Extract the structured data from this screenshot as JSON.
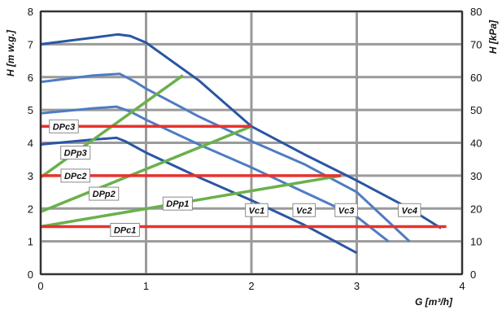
{
  "chart_data": {
    "type": "line",
    "xlabel": "G [m³/h]",
    "ylabel_left": "H [m w.g.]",
    "ylabel_right": "H [kPa]",
    "xlim": [
      0,
      4
    ],
    "ylim_left": [
      0,
      8
    ],
    "ylim_right": [
      0,
      80
    ],
    "x_ticks": [
      "0",
      "1",
      "2",
      "3",
      "4"
    ],
    "y_ticks_left": [
      "0",
      "1",
      "2",
      "3",
      "4",
      "5",
      "6",
      "7",
      "8"
    ],
    "y_ticks_right": [
      "0",
      "10",
      "20",
      "30",
      "40",
      "50",
      "60",
      "70",
      "80"
    ],
    "grid": true,
    "colors": {
      "vc": "#2a56a3",
      "vc_light": "#4f7cc2",
      "dpp": "#6ab04c",
      "dpc": "#e8322c",
      "grid": "#9a9a9a"
    },
    "series": [
      {
        "name": "Vc1",
        "group": "vc",
        "points": [
          [
            0,
            3.95
          ],
          [
            0.5,
            4.1
          ],
          [
            0.72,
            4.15
          ],
          [
            0.8,
            4.05
          ],
          [
            1.0,
            3.7
          ],
          [
            1.5,
            2.95
          ],
          [
            2.0,
            2.25
          ],
          [
            2.5,
            1.5
          ],
          [
            3.0,
            0.65
          ]
        ]
      },
      {
        "name": "Vc2",
        "group": "vc",
        "points": [
          [
            0,
            4.9
          ],
          [
            0.5,
            5.05
          ],
          [
            0.72,
            5.1
          ],
          [
            0.85,
            4.95
          ],
          [
            1.0,
            4.7
          ],
          [
            1.5,
            3.95
          ],
          [
            2.0,
            3.25
          ],
          [
            2.5,
            2.5
          ],
          [
            3.0,
            1.75
          ],
          [
            3.3,
            1.0
          ]
        ]
      },
      {
        "name": "Vc3",
        "group": "vc",
        "points": [
          [
            0,
            5.85
          ],
          [
            0.5,
            6.05
          ],
          [
            0.75,
            6.1
          ],
          [
            0.9,
            5.85
          ],
          [
            1.0,
            5.65
          ],
          [
            1.5,
            4.8
          ],
          [
            2.0,
            4.05
          ],
          [
            2.5,
            3.35
          ],
          [
            3.0,
            2.5
          ],
          [
            3.5,
            1.0
          ]
        ]
      },
      {
        "name": "Vc4",
        "group": "vc",
        "points": [
          [
            0,
            7.0
          ],
          [
            0.5,
            7.2
          ],
          [
            0.73,
            7.3
          ],
          [
            0.85,
            7.25
          ],
          [
            1.0,
            7.05
          ],
          [
            1.5,
            5.9
          ],
          [
            2.0,
            4.5
          ],
          [
            2.5,
            3.65
          ],
          [
            3.0,
            2.85
          ],
          [
            3.5,
            2.0
          ],
          [
            3.8,
            1.4
          ]
        ]
      },
      {
        "name": "DPp1",
        "group": "dpp",
        "points": [
          [
            0,
            1.45
          ],
          [
            2.85,
            3.0
          ]
        ]
      },
      {
        "name": "DPp2",
        "group": "dpp",
        "points": [
          [
            0,
            1.9
          ],
          [
            2.0,
            4.5
          ]
        ]
      },
      {
        "name": "DPp3",
        "group": "dpp",
        "points": [
          [
            0,
            2.95
          ],
          [
            1.35,
            6.05
          ]
        ]
      },
      {
        "name": "DPc1",
        "group": "dpc",
        "points": [
          [
            0,
            1.45
          ],
          [
            3.85,
            1.45
          ]
        ]
      },
      {
        "name": "DPc2",
        "group": "dpc",
        "points": [
          [
            0,
            3.0
          ],
          [
            2.85,
            3.0
          ]
        ]
      },
      {
        "name": "DPc3",
        "group": "dpc",
        "points": [
          [
            0,
            4.5
          ],
          [
            2.0,
            4.5
          ]
        ]
      }
    ],
    "labels": [
      {
        "text": "DPc3",
        "x": 0.22,
        "y": 4.5
      },
      {
        "text": "DPp3",
        "x": 0.33,
        "y": 3.7
      },
      {
        "text": "DPc2",
        "x": 0.33,
        "y": 3.0
      },
      {
        "text": "DPp2",
        "x": 0.6,
        "y": 2.45
      },
      {
        "text": "DPp1",
        "x": 1.3,
        "y": 2.15
      },
      {
        "text": "DPc1",
        "x": 0.8,
        "y": 1.35
      },
      {
        "text": "Vc1",
        "x": 2.05,
        "y": 1.95
      },
      {
        "text": "Vc2",
        "x": 2.5,
        "y": 1.95
      },
      {
        "text": "Vc3",
        "x": 2.9,
        "y": 1.95
      },
      {
        "text": "Vc4",
        "x": 3.5,
        "y": 1.95
      }
    ]
  }
}
